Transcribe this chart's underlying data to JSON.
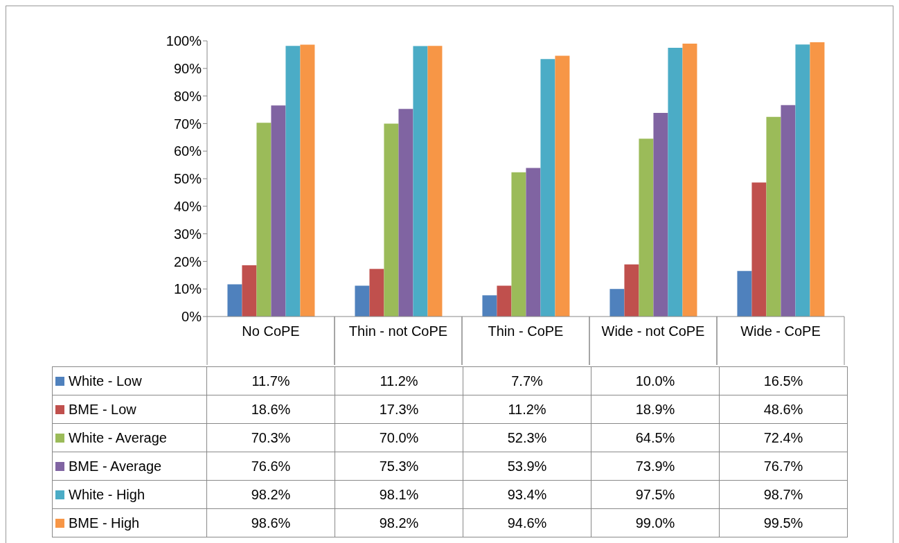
{
  "chart_data": {
    "type": "bar",
    "categories": [
      "No CoPE",
      "Thin - not CoPE",
      "Thin - CoPE",
      "Wide - not CoPE",
      "Wide - CoPE"
    ],
    "series": [
      {
        "name": "White - Low",
        "color": "#4f81bd",
        "values": [
          11.7,
          11.2,
          7.7,
          10.0,
          16.5
        ],
        "value_labels": [
          "11.7%",
          "11.2%",
          "7.7%",
          "10.0%",
          "16.5%"
        ]
      },
      {
        "name": "BME - Low",
        "color": "#c0504d",
        "values": [
          18.6,
          17.3,
          11.2,
          18.9,
          48.6
        ],
        "value_labels": [
          "18.6%",
          "17.3%",
          "11.2%",
          "18.9%",
          "48.6%"
        ]
      },
      {
        "name": "White - Average",
        "color": "#9bbb59",
        "values": [
          70.3,
          70.0,
          52.3,
          64.5,
          72.4
        ],
        "value_labels": [
          "70.3%",
          "70.0%",
          "52.3%",
          "64.5%",
          "72.4%"
        ]
      },
      {
        "name": "BME - Average",
        "color": "#8064a2",
        "values": [
          76.6,
          75.3,
          53.9,
          73.9,
          76.7
        ],
        "value_labels": [
          "76.6%",
          "75.3%",
          "53.9%",
          "73.9%",
          "76.7%"
        ]
      },
      {
        "name": "White - High",
        "color": "#4bacc6",
        "values": [
          98.2,
          98.1,
          93.4,
          97.5,
          98.7
        ],
        "value_labels": [
          "98.2%",
          "98.1%",
          "93.4%",
          "97.5%",
          "98.7%"
        ]
      },
      {
        "name": "BME - High",
        "color": "#f79646",
        "values": [
          98.6,
          98.2,
          94.6,
          99.0,
          99.5
        ],
        "value_labels": [
          "98.6%",
          "98.2%",
          "94.6%",
          "99.0%",
          "99.5%"
        ]
      }
    ],
    "ylim": [
      0,
      100
    ],
    "yticks": [
      {
        "value": 0,
        "label": "0%"
      },
      {
        "value": 10,
        "label": "10%"
      },
      {
        "value": 20,
        "label": "20%"
      },
      {
        "value": 30,
        "label": "30%"
      },
      {
        "value": 40,
        "label": "40%"
      },
      {
        "value": 50,
        "label": "50%"
      },
      {
        "value": 60,
        "label": "60%"
      },
      {
        "value": 70,
        "label": "70%"
      },
      {
        "value": 80,
        "label": "80%"
      },
      {
        "value": 90,
        "label": "90%"
      },
      {
        "value": 100,
        "label": "100%"
      }
    ],
    "grid": false,
    "legend": "bottom"
  }
}
